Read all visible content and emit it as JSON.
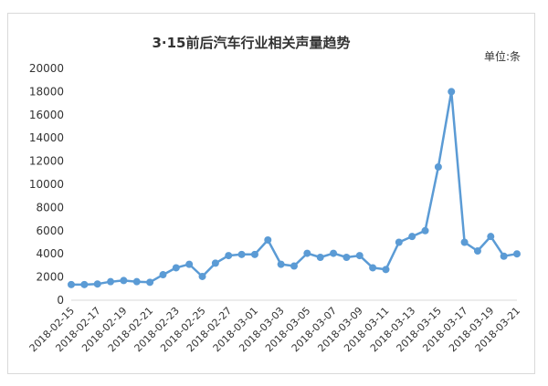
{
  "chart_data": {
    "type": "line",
    "title": "3·15前后汽车行业相关声量趋势",
    "unit_label": "单位:条",
    "xlabel": "",
    "ylabel": "",
    "ylim": [
      0,
      20000
    ],
    "yticks": [
      0,
      2000,
      4000,
      6000,
      8000,
      10000,
      12000,
      14000,
      16000,
      18000,
      20000
    ],
    "grid": false,
    "legend": "none",
    "x": [
      "2018-02-15",
      "2018-02-16",
      "2018-02-17",
      "2018-02-18",
      "2018-02-19",
      "2018-02-20",
      "2018-02-21",
      "2018-02-22",
      "2018-02-23",
      "2018-02-24",
      "2018-02-25",
      "2018-02-26",
      "2018-02-27",
      "2018-02-28",
      "2018-03-01",
      "2018-03-02",
      "2018-03-03",
      "2018-03-04",
      "2018-03-05",
      "2018-03-06",
      "2018-03-07",
      "2018-03-08",
      "2018-03-09",
      "2018-03-10",
      "2018-03-11",
      "2018-03-12",
      "2018-03-13",
      "2018-03-14",
      "2018-03-15",
      "2018-03-16",
      "2018-03-17",
      "2018-03-18",
      "2018-03-19",
      "2018-03-20",
      "2018-03-21"
    ],
    "xtick_labels": [
      "2018-02-15",
      "2018-02-17",
      "2018-02-19",
      "2018-02-21",
      "2018-02-23",
      "2018-02-25",
      "2018-02-27",
      "2018-03-01",
      "2018-03-03",
      "2018-03-05",
      "2018-03-07",
      "2018-03-09",
      "2018-03-11",
      "2018-03-13",
      "2018-03-15",
      "2018-03-17",
      "2018-03-19",
      "2018-03-21"
    ],
    "series": [
      {
        "values": [
          1350,
          1350,
          1400,
          1600,
          1700,
          1600,
          1550,
          2200,
          2800,
          3100,
          2050,
          3200,
          3850,
          3950,
          3950,
          5200,
          3100,
          2950,
          4050,
          3700,
          4050,
          3700,
          3850,
          2800,
          2650,
          5000,
          5500,
          6000,
          11500,
          18000,
          5000,
          4250,
          5500,
          3800,
          4000
        ]
      }
    ],
    "colors": {
      "line": "#5b9bd5",
      "marker": "#5b9bd5"
    }
  }
}
